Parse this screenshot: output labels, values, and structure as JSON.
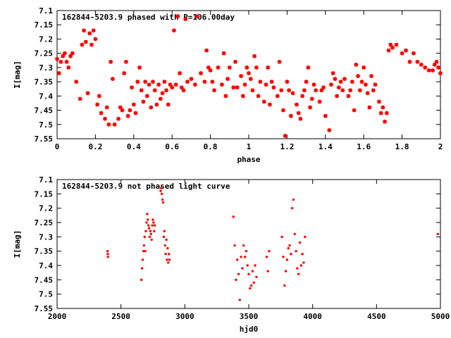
{
  "colors": {
    "marker": "#ff0000",
    "axis": "#000000",
    "background": "#ffffff"
  },
  "chart_data": [
    {
      "type": "scatter",
      "title": "162844-5203.9 phased with P=106.00day",
      "xlabel": "phase",
      "ylabel": "I[mag]",
      "xlim": [
        0,
        2
      ],
      "ylim": [
        7.55,
        7.1
      ],
      "y_inverted": true,
      "xticks": [
        0,
        0.2,
        0.4,
        0.6,
        0.8,
        1,
        1.2,
        1.4,
        1.6,
        1.8,
        2
      ],
      "xtick_labels": [
        "0",
        "0.2",
        "0.4",
        "0.6",
        "0.8",
        "1",
        "1.2",
        "1.4",
        "1.6",
        "1.8",
        "2"
      ],
      "yticks": [
        7.1,
        7.15,
        7.2,
        7.25,
        7.3,
        7.35,
        7.4,
        7.45,
        7.5,
        7.55
      ],
      "ytick_labels": [
        "7.1",
        "7.15",
        "7.2",
        "7.25",
        "7.3",
        "7.35",
        "7.4",
        "7.45",
        "7.5",
        "7.55"
      ],
      "grid": false,
      "marker": "asterisk",
      "x": [
        0.0,
        0.01,
        0.02,
        0.03,
        0.04,
        0.05,
        0.06,
        0.07,
        0.08,
        0.1,
        0.12,
        0.13,
        0.14,
        0.15,
        0.16,
        0.17,
        0.18,
        0.19,
        0.2,
        0.21,
        0.22,
        0.23,
        0.25,
        0.26,
        0.27,
        0.28,
        0.29,
        0.3,
        0.32,
        0.33,
        0.34,
        0.35,
        0.36,
        0.37,
        0.38,
        0.39,
        0.4,
        0.41,
        0.42,
        0.43,
        0.44,
        0.45,
        0.46,
        0.47,
        0.48,
        0.49,
        0.5,
        0.51,
        0.52,
        0.53,
        0.54,
        0.55,
        0.56,
        0.57,
        0.58,
        0.59,
        0.6,
        0.61,
        0.62,
        0.63,
        0.64,
        0.65,
        0.66,
        0.67,
        0.68,
        0.7,
        0.72,
        0.73,
        0.75,
        0.77,
        0.78,
        0.79,
        0.8,
        0.81,
        0.82,
        0.84,
        0.86,
        0.87,
        0.88,
        0.89,
        0.9,
        0.92,
        0.93,
        0.94,
        0.96,
        0.97,
        0.98,
        0.99,
        1.0,
        1.01,
        1.02,
        1.03,
        1.04,
        1.05,
        1.06,
        1.08,
        1.09,
        1.1,
        1.11,
        1.12,
        1.13,
        1.15,
        1.16,
        1.17,
        1.18,
        1.19,
        1.2,
        1.21,
        1.22,
        1.23,
        1.25,
        1.26,
        1.27,
        1.28,
        1.29,
        1.3,
        1.31,
        1.32,
        1.33,
        1.34,
        1.35,
        1.37,
        1.38,
        1.39,
        1.4,
        1.42,
        1.43,
        1.44,
        1.45,
        1.46,
        1.47,
        1.48,
        1.49,
        1.5,
        1.52,
        1.53,
        1.54,
        1.55,
        1.56,
        1.57,
        1.58,
        1.59,
        1.6,
        1.61,
        1.62,
        1.63,
        1.64,
        1.65,
        1.66,
        1.68,
        1.69,
        1.7,
        1.71,
        1.72,
        1.73,
        1.74,
        1.75,
        1.77,
        1.8,
        1.82,
        1.84,
        1.86,
        1.88,
        1.9,
        1.92,
        1.94,
        1.96,
        1.97,
        1.98,
        1.99,
        2.0
      ],
      "y": [
        7.27,
        7.32,
        7.28,
        7.26,
        7.25,
        7.28,
        7.3,
        7.26,
        7.25,
        7.35,
        7.41,
        7.22,
        7.17,
        7.21,
        7.39,
        7.18,
        7.22,
        7.17,
        7.2,
        7.43,
        7.4,
        7.46,
        7.48,
        7.44,
        7.5,
        7.28,
        7.34,
        7.5,
        7.48,
        7.44,
        7.45,
        7.32,
        7.28,
        7.47,
        7.45,
        7.37,
        7.43,
        7.46,
        7.35,
        7.3,
        7.38,
        7.42,
        7.35,
        7.4,
        7.36,
        7.44,
        7.35,
        7.38,
        7.43,
        7.36,
        7.41,
        7.39,
        7.35,
        7.38,
        7.43,
        7.36,
        7.37,
        7.17,
        7.36,
        7.12,
        7.32,
        7.37,
        7.38,
        7.13,
        7.35,
        7.34,
        7.36,
        7.12,
        7.32,
        7.35,
        7.24,
        7.3,
        7.31,
        7.35,
        7.38,
        7.3,
        7.36,
        7.25,
        7.4,
        7.34,
        7.3,
        7.37,
        7.28,
        7.37,
        7.33,
        7.4,
        7.36,
        7.3,
        7.32,
        7.34,
        7.38,
        7.26,
        7.3,
        7.4,
        7.35,
        7.42,
        7.36,
        7.3,
        7.43,
        7.35,
        7.37,
        7.4,
        7.28,
        7.38,
        7.45,
        7.54,
        7.35,
        7.38,
        7.47,
        7.39,
        7.43,
        7.46,
        7.48,
        7.4,
        7.38,
        7.35,
        7.3,
        7.44,
        7.41,
        7.36,
        7.38,
        7.42,
        7.38,
        7.37,
        7.47,
        7.52,
        7.36,
        7.32,
        7.34,
        7.4,
        7.37,
        7.35,
        7.38,
        7.34,
        7.4,
        7.38,
        7.35,
        7.45,
        7.29,
        7.33,
        7.38,
        7.35,
        7.3,
        7.36,
        7.39,
        7.44,
        7.33,
        7.38,
        7.36,
        7.42,
        7.46,
        7.44,
        7.49,
        7.46,
        7.24,
        7.22,
        7.23,
        7.22,
        7.25,
        7.24,
        7.28,
        7.25,
        7.28,
        7.29,
        7.3,
        7.31,
        7.31,
        7.29,
        7.28,
        7.3,
        7.32
      ]
    },
    {
      "type": "scatter",
      "title": "162844-5203.9 not phased light curve",
      "xlabel": "hjd0",
      "ylabel": "I[mag]",
      "xlim": [
        2000,
        5000
      ],
      "ylim": [
        7.55,
        7.1
      ],
      "y_inverted": true,
      "xticks": [
        2000,
        2500,
        3000,
        3500,
        4000,
        4500,
        5000
      ],
      "xtick_labels": [
        "2000",
        "2500",
        "3000",
        "3500",
        "4000",
        "4500",
        "5000"
      ],
      "yticks": [
        7.1,
        7.15,
        7.2,
        7.25,
        7.3,
        7.35,
        7.4,
        7.45,
        7.5,
        7.55
      ],
      "ytick_labels": [
        "7.1",
        "7.15",
        "7.2",
        "7.25",
        "7.3",
        "7.35",
        "7.4",
        "7.45",
        "7.5",
        "7.55"
      ],
      "grid": false,
      "marker": "dot",
      "x": [
        2395,
        2397,
        2398,
        2660,
        2665,
        2670,
        2675,
        2680,
        2685,
        2690,
        2695,
        2700,
        2705,
        2710,
        2715,
        2720,
        2725,
        2730,
        2735,
        2740,
        2745,
        2750,
        2755,
        2760,
        2765,
        2810,
        2815,
        2820,
        2825,
        2830,
        2835,
        2840,
        2845,
        2850,
        2855,
        2860,
        2865,
        2870,
        2875,
        2880,
        3380,
        3390,
        3400,
        3410,
        3420,
        3430,
        3440,
        3450,
        3460,
        3470,
        3480,
        3490,
        3500,
        3510,
        3520,
        3530,
        3540,
        3550,
        3560,
        3640,
        3650,
        3660,
        3760,
        3770,
        3780,
        3790,
        3800,
        3810,
        3820,
        3830,
        3840,
        3850,
        3860,
        3870,
        3880,
        3890,
        3900,
        3910,
        3920,
        3930,
        3940,
        4980
      ],
      "y": [
        7.35,
        7.36,
        7.37,
        7.45,
        7.41,
        7.38,
        7.35,
        7.33,
        7.3,
        7.35,
        7.28,
        7.25,
        7.22,
        7.24,
        7.26,
        7.27,
        7.3,
        7.28,
        7.29,
        7.31,
        7.26,
        7.24,
        7.25,
        7.28,
        7.26,
        7.14,
        7.13,
        7.15,
        7.17,
        7.18,
        7.3,
        7.28,
        7.33,
        7.36,
        7.31,
        7.38,
        7.34,
        7.39,
        7.36,
        7.38,
        7.23,
        7.33,
        7.45,
        7.38,
        7.43,
        7.52,
        7.37,
        7.41,
        7.33,
        7.37,
        7.35,
        7.4,
        7.43,
        7.48,
        7.47,
        7.42,
        7.46,
        7.4,
        7.44,
        7.37,
        7.42,
        7.35,
        7.3,
        7.37,
        7.47,
        7.42,
        7.38,
        7.34,
        7.33,
        7.36,
        7.2,
        7.17,
        7.29,
        7.35,
        7.41,
        7.43,
        7.32,
        7.4,
        7.36,
        7.39,
        7.3,
        7.29
      ]
    }
  ]
}
